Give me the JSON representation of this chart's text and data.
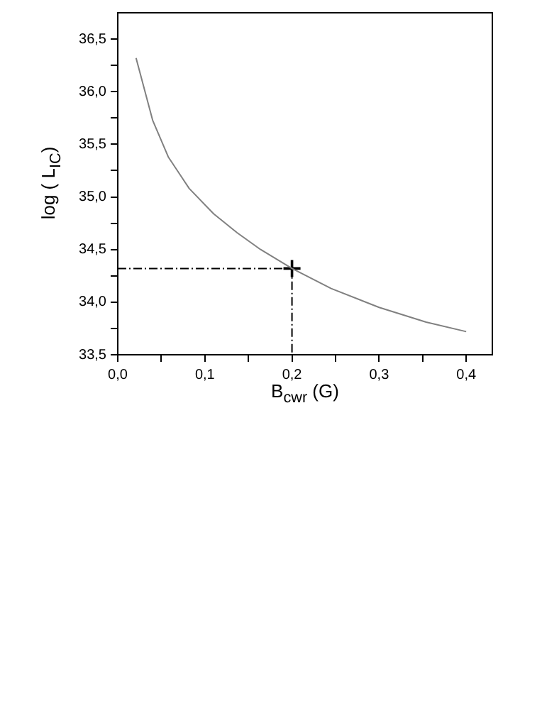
{
  "chart_data": {
    "type": "line",
    "xlabel": "B$_{cwr}$ (G)",
    "ylabel": "log ( L$_{IC}$)",
    "xlim": [
      0,
      0.43
    ],
    "ylim": [
      33.5,
      36.75
    ],
    "xticks": [
      {
        "value": 0,
        "label": "0,0"
      },
      {
        "value": 0.05,
        "label": null
      },
      {
        "value": 0.1,
        "label": "0,1"
      },
      {
        "value": 0.15,
        "label": null
      },
      {
        "value": 0.2,
        "label": "0,2"
      },
      {
        "value": 0.25,
        "label": null
      },
      {
        "value": 0.3,
        "label": "0,3"
      },
      {
        "value": 0.35,
        "label": null
      },
      {
        "value": 0.4,
        "label": "0,4"
      }
    ],
    "yticks": [
      {
        "value": 33.5,
        "label": "33,5"
      },
      {
        "value": 33.75,
        "label": null
      },
      {
        "value": 34,
        "label": "34,0"
      },
      {
        "value": 34.25,
        "label": null
      },
      {
        "value": 34.5,
        "label": "34,5"
      },
      {
        "value": 34.75,
        "label": null
      },
      {
        "value": 35,
        "label": "35,0"
      },
      {
        "value": 35.25,
        "label": null
      },
      {
        "value": 35.5,
        "label": "35,5"
      },
      {
        "value": 35.75,
        "label": null
      },
      {
        "value": 36,
        "label": "36,0"
      },
      {
        "value": 36.25,
        "label": null
      },
      {
        "value": 36.5,
        "label": "36,5"
      }
    ],
    "grid": false,
    "legend": false,
    "series": [
      {
        "color": "#808080",
        "marker": "none",
        "line_style": "solid",
        "x": [
          0.021,
          0.04,
          0.058,
          0.082,
          0.11,
          0.137,
          0.164,
          0.2,
          0.245,
          0.3,
          0.354,
          0.4
        ],
        "values": [
          36.32,
          35.73,
          35.38,
          35.08,
          34.84,
          34.66,
          34.5,
          34.32,
          34.13,
          33.95,
          33.81,
          33.72
        ]
      },
      {
        "color": "#000000",
        "marker": "none",
        "line_style": "dashed",
        "x": [
          0,
          0.2,
          0.2
        ],
        "values": [
          34.32,
          34.32,
          33.5
        ]
      },
      {
        "type": "scatter",
        "color": "#000000",
        "marker": "cross",
        "x": [
          0.2
        ],
        "values": [
          34.32
        ]
      }
    ]
  }
}
